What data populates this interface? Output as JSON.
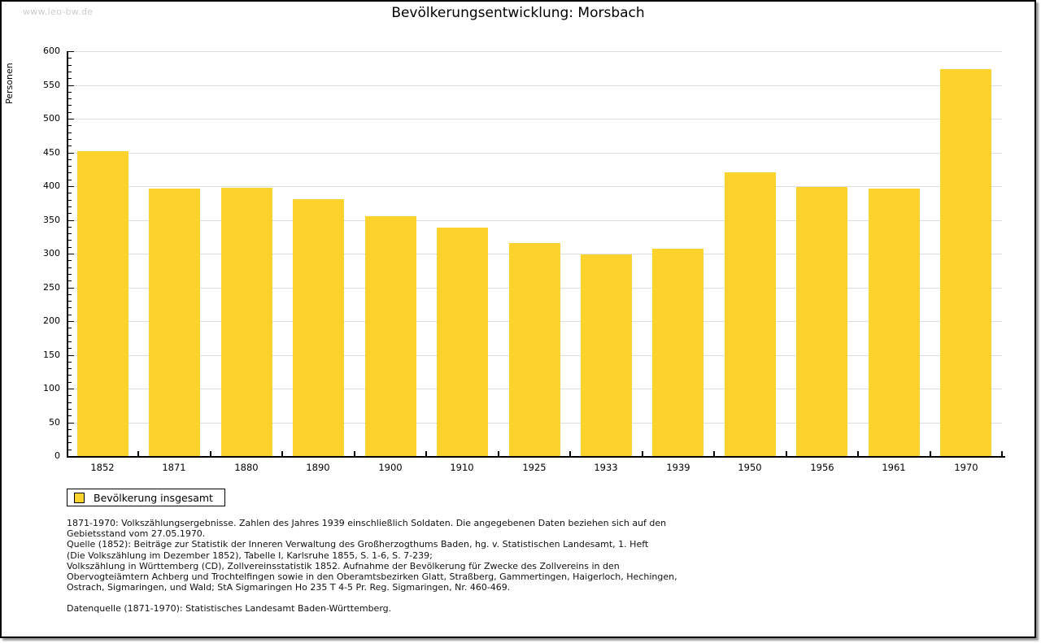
{
  "page": {
    "watermark": "www.leo-bw.de",
    "title": "Bevölkerungsentwicklung: Morsbach"
  },
  "chart_data": {
    "type": "bar",
    "title": "Bevölkerungsentwicklung: Morsbach",
    "xlabel": "",
    "ylabel": "Personen",
    "categories": [
      "1852",
      "1871",
      "1880",
      "1890",
      "1900",
      "1910",
      "1925",
      "1933",
      "1939",
      "1950",
      "1956",
      "1961",
      "1970"
    ],
    "values": [
      452,
      396,
      398,
      381,
      355,
      338,
      316,
      299,
      307,
      420,
      399,
      396,
      573
    ],
    "ylim": [
      0,
      600
    ],
    "ytick_step": 50,
    "y_minor_tick_step": 10,
    "grid": true,
    "bar_color": "#FCD32D",
    "grid_color": "#dddddd",
    "axis_color": "#000000",
    "legend": {
      "position": "bottom-left",
      "items": [
        {
          "label": "Bevölkerung insgesamt",
          "color": "#FCD32D"
        }
      ]
    }
  },
  "legend": {
    "label": "Bevölkerung insgesamt"
  },
  "footnote_lines": [
    "1871-1970: Volkszählungsergebnisse. Zahlen des Jahres 1939 einschließlich Soldaten. Die angegebenen Daten beziehen sich auf den",
    "Gebietsstand vom 27.05.1970.",
    "Quelle (1852): Beiträge zur Statistik der Inneren Verwaltung des Großherzogthums Baden, hg. v. Statistischen Landesamt, 1. Heft",
    "(Die Volkszählung im Dezember 1852), Tabelle I, Karlsruhe 1855, S. 1-6, S. 7-239;",
    "Volkszählung in Württemberg (CD), Zollvereinsstatistik 1852. Aufnahme der Bevölkerung für Zwecke des Zollvereins in den",
    "Obervogteiämtern Achberg und Trochtelfingen sowie in den Oberamtsbezirken Glatt, Straßberg, Gammertingen, Haigerloch, Hechingen,",
    "Ostrach, Sigmaringen, und Wald; StA Sigmaringen Ho 235 T 4-5 Pr. Reg. Sigmaringen, Nr. 460-469."
  ],
  "datasource_line": "Datenquelle (1871-1970): Statistisches Landesamt Baden-Württemberg."
}
